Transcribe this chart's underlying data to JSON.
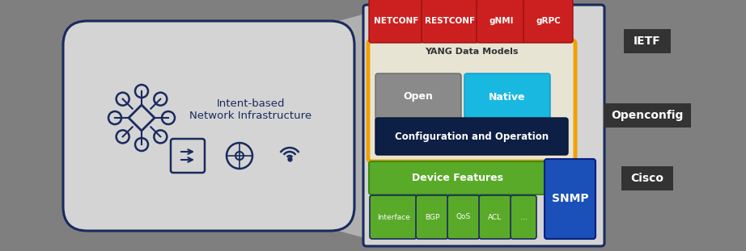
{
  "bg_color": "#7f7f7f",
  "panel_bg": "#d4d4d4",
  "panel_border": "#1a2a5e",
  "red_color": "#cc2020",
  "orange_border": "#f0a000",
  "dark_blue": "#0d1f45",
  "green_color": "#5aaa2a",
  "cyan_color": "#18b8e0",
  "gray_box": "#8a8a8a",
  "snmp_blue": "#1a50b8",
  "label_bg": "#333333",
  "yang_bg": "#e8e4d4",
  "protocols": [
    "NETCONF",
    "RESTCONF",
    "gNMI",
    "gRPC"
  ],
  "right_labels": [
    "IETF",
    "Openconfig",
    "Cisco"
  ],
  "bubble_bg": "#d4d4d4",
  "bubble_border": "#1a2a5e",
  "icon_color": "#1a2a5e"
}
